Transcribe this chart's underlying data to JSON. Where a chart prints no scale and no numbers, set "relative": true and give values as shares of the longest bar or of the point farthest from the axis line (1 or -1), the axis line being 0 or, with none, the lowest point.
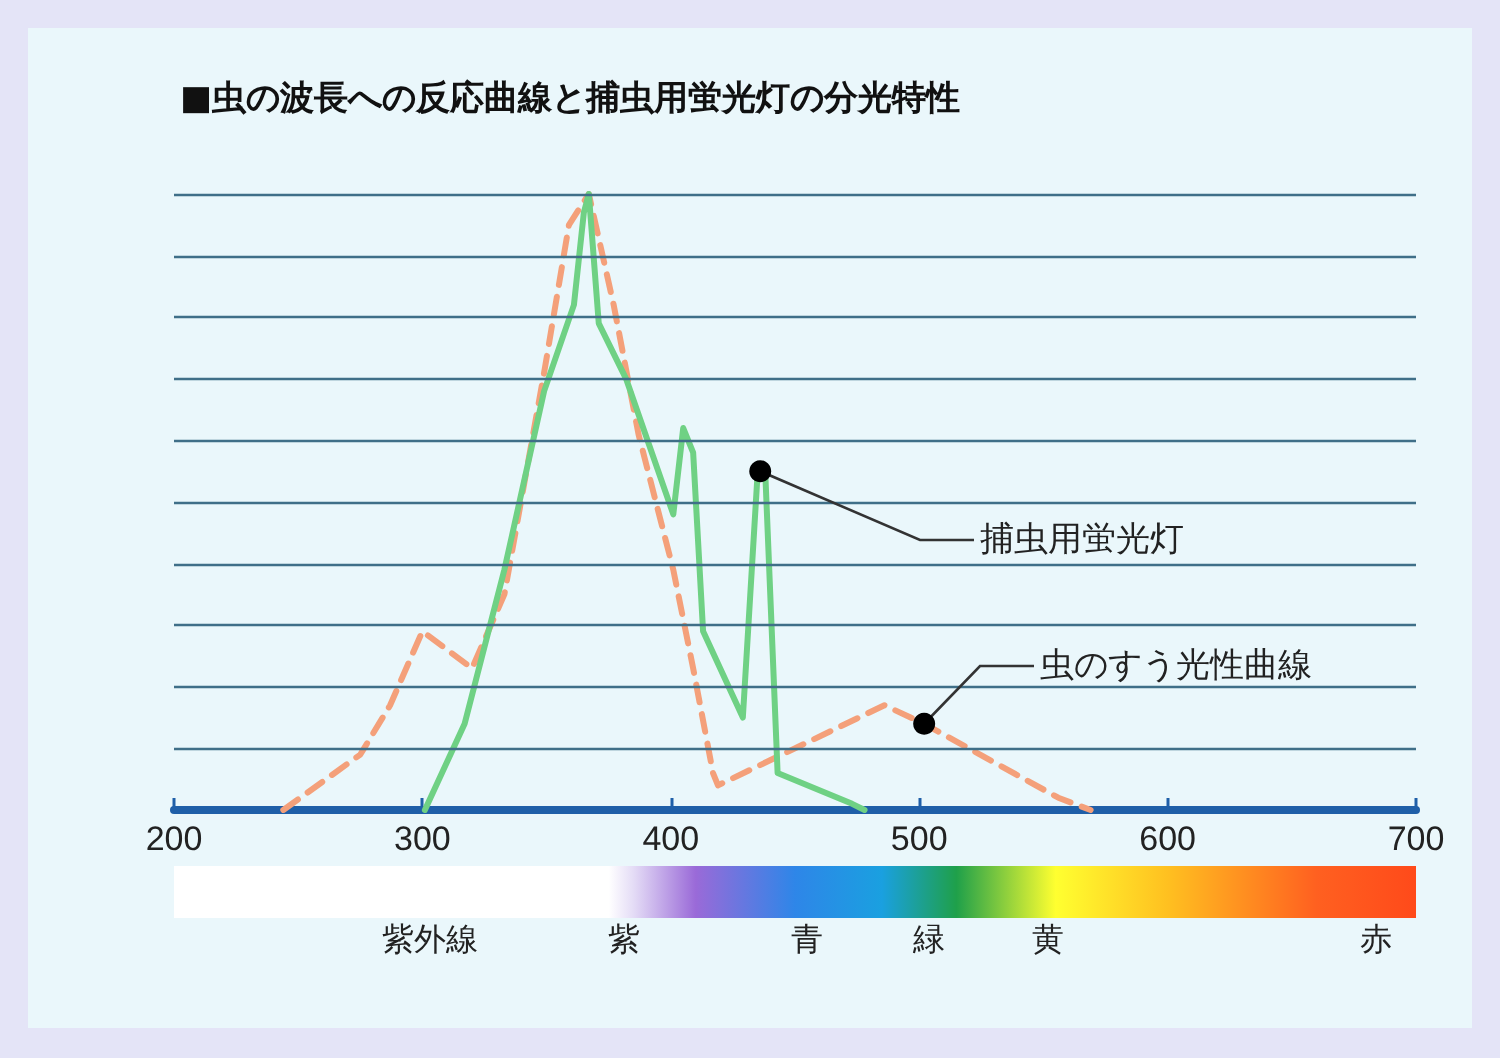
{
  "chart_data": {
    "type": "line",
    "title": "■虫の波長への反応曲線と捕虫用蛍光灯の分光特性",
    "relative": true,
    "xlim": [
      200,
      700
    ],
    "xticks": [
      200,
      300,
      400,
      500,
      600,
      700
    ],
    "ref_lines": [
      {
        "axis": "y",
        "value": 0.1,
        "color": "#3f6f88"
      },
      {
        "axis": "y",
        "value": 0.2,
        "color": "#3f6f88"
      },
      {
        "axis": "y",
        "value": 0.3,
        "color": "#3f6f88"
      },
      {
        "axis": "y",
        "value": 0.4,
        "color": "#3f6f88"
      },
      {
        "axis": "y",
        "value": 0.5,
        "color": "#3f6f88"
      },
      {
        "axis": "y",
        "value": 0.6,
        "color": "#3f6f88"
      },
      {
        "axis": "y",
        "value": 0.7,
        "color": "#3f6f88"
      },
      {
        "axis": "y",
        "value": 0.8,
        "color": "#3f6f88"
      },
      {
        "axis": "y",
        "value": 0.9,
        "color": "#3f6f88"
      },
      {
        "axis": "y",
        "value": 1,
        "color": "#3f6f88"
      }
    ],
    "legend": false,
    "marker": "none",
    "series": [
      {
        "name": "捕虫用蛍光灯",
        "color": "#6fd184",
        "line_style": "solid",
        "x": [
          301,
          317,
          333,
          349,
          361,
          365,
          367,
          371,
          382,
          401,
          405,
          409,
          413,
          429,
          435,
          438,
          443,
          473,
          478
        ],
        "values": [
          0,
          0.14,
          0.39,
          0.68,
          0.82,
          0.97,
          1.0,
          0.79,
          0.7,
          0.48,
          0.62,
          0.58,
          0.29,
          0.15,
          0.55,
          0.55,
          0.06,
          0.01,
          0
        ]
      },
      {
        "name": "虫のすう光性曲線",
        "color": "#f4a07a",
        "line_style": "dashed",
        "x": [
          244,
          275,
          287,
          300,
          320,
          333,
          349,
          359,
          367,
          377,
          387,
          401,
          409,
          417,
          419,
          486,
          502,
          556,
          569
        ],
        "values": [
          0,
          0.09,
          0.17,
          0.29,
          0.23,
          0.35,
          0.71,
          0.95,
          1.0,
          0.82,
          0.61,
          0.39,
          0.23,
          0.06,
          0.04,
          0.17,
          0.14,
          0.02,
          0
        ]
      }
    ],
    "annotations": [
      "紫外線",
      "紫",
      "青",
      "緑",
      "黄",
      "赤"
    ]
  }
}
